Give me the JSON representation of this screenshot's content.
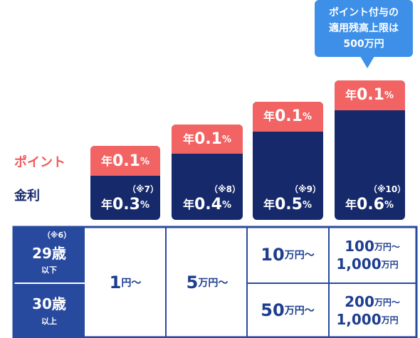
{
  "callout": {
    "lines": [
      "ポイント付与の",
      "適用残高上限は",
      "500万円"
    ]
  },
  "labels": {
    "point": "ポイント",
    "rate": "金利"
  },
  "columns": [
    {
      "point": {
        "prefix": "年",
        "num": 0.1,
        "unit": "%"
      },
      "rate": {
        "note": "（※7）",
        "prefix": "年",
        "num": 0.3,
        "unit": "%"
      }
    },
    {
      "point": {
        "prefix": "年",
        "num": 0.1,
        "unit": "%"
      },
      "rate": {
        "note": "（※8）",
        "prefix": "年",
        "num": 0.4,
        "unit": "%"
      }
    },
    {
      "point": {
        "prefix": "年",
        "num": 0.1,
        "unit": "%"
      },
      "rate": {
        "note": "（※9）",
        "prefix": "年",
        "num": 0.5,
        "unit": "%"
      }
    },
    {
      "point": {
        "prefix": "年",
        "num": 0.1,
        "unit": "%"
      },
      "rate": {
        "note": "（※10）",
        "prefix": "年",
        "num": 0.6,
        "unit": "%"
      }
    }
  ],
  "table": {
    "rows": [
      {
        "note": "（※6）",
        "age": "29歳",
        "suffix": "以下"
      },
      {
        "age": "30歳",
        "suffix": "以上"
      }
    ],
    "cells": {
      "c1": {
        "num": 1,
        "unit": "円〜"
      },
      "c2": {
        "num": 5,
        "unit": "万円〜"
      },
      "c3": [
        {
          "num": 10,
          "unit": "万円〜"
        },
        {
          "num": 50,
          "unit": "万円〜"
        }
      ],
      "c4": [
        {
          "num": 100,
          "unit": "万円〜",
          "num2": "1,000",
          "unit2": "万円"
        },
        {
          "num": 200,
          "unit": "万円〜",
          "num2": "1,000",
          "unit2": "万円"
        }
      ]
    }
  }
}
